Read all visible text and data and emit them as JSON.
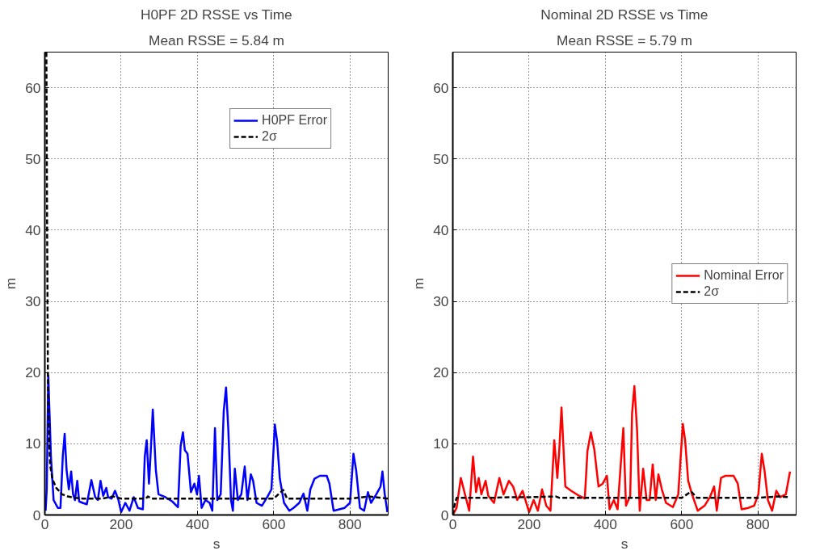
{
  "chart_data": [
    {
      "type": "line",
      "title": "H0PF 2D RSSE vs Time",
      "subtitle": "Mean RSSE = 5.84 m",
      "xlabel": "s",
      "ylabel": "m",
      "xlim": [
        0,
        900
      ],
      "ylim": [
        0,
        65
      ],
      "xticks": [
        0,
        200,
        400,
        600,
        800
      ],
      "yticks": [
        0,
        10,
        20,
        30,
        40,
        50,
        60
      ],
      "grid": true,
      "legend": "top right",
      "series": [
        {
          "name": "H0PF Error",
          "color": "#0000ff",
          "line_style": "solid",
          "x": [
            2,
            5,
            9,
            16,
            23,
            34,
            41,
            47,
            52,
            57,
            63,
            69,
            74,
            79,
            85,
            90,
            99,
            110,
            122,
            132,
            139,
            146,
            153,
            161,
            166,
            175,
            184,
            193,
            200,
            211,
            222,
            233,
            244,
            257,
            262,
            267,
            273,
            278,
            283,
            291,
            298,
            316,
            334,
            349,
            356,
            362,
            367,
            374,
            383,
            392,
            399,
            404,
            411,
            421,
            432,
            439,
            446,
            452,
            461,
            469,
            475,
            481,
            488,
            493,
            498,
            506,
            515,
            524,
            531,
            540,
            546,
            555,
            569,
            583,
            594,
            603,
            609,
            616,
            627,
            641,
            652,
            667,
            678,
            688,
            696,
            707,
            721,
            739,
            746,
            757,
            772,
            786,
            800,
            809,
            816,
            826,
            837,
            847,
            855,
            869,
            880,
            885,
            891,
            898
          ],
          "values": [
            0.6,
            3.6,
            19.6,
            8.2,
            2.1,
            1,
            1,
            8.2,
            11.4,
            6.3,
            3.6,
            6.1,
            2.9,
            2.1,
            4.8,
            1.9,
            1.7,
            1.5,
            4.9,
            2.5,
            2.1,
            4.8,
            2.7,
            3.8,
            2.5,
            2.3,
            3.4,
            2.1,
            0.4,
            1.7,
            0.6,
            2.5,
            1,
            0.8,
            8.2,
            10.5,
            4.4,
            9.3,
            14.8,
            6.3,
            2.9,
            2.5,
            1.9,
            1.1,
            9.7,
            11.6,
            9.1,
            8.6,
            3.2,
            4.4,
            2.9,
            5.5,
            1,
            2.1,
            1.7,
            0.6,
            12.2,
            2.1,
            2.9,
            14.6,
            17.9,
            12,
            2.1,
            0.6,
            6.5,
            2.1,
            2.9,
            6.8,
            2.1,
            5.7,
            4.8,
            1.7,
            1.3,
            2.5,
            3.6,
            12.7,
            10.3,
            5.1,
            1.7,
            0.6,
            1,
            1.7,
            3,
            0.6,
            3.6,
            5.1,
            5.5,
            5.5,
            4.4,
            0.6,
            0.8,
            1,
            1.7,
            8.6,
            6.3,
            1,
            0.6,
            3.2,
            1.7,
            2.9,
            4,
            6.1,
            2.9,
            0.4
          ]
        },
        {
          "name": "2σ",
          "color": "#000000",
          "line_style": "dashed",
          "x": [
            4,
            6,
            8,
            10,
            14,
            20,
            30,
            45,
            60,
            80,
            100,
            150,
            180,
            200,
            265,
            270,
            280,
            600,
            610,
            625,
            635,
            800,
            850,
            900
          ],
          "values": [
            65,
            40,
            20,
            12,
            7,
            5,
            3.8,
            2.9,
            2.6,
            2.4,
            2.3,
            2.3,
            2.6,
            2.3,
            2.3,
            2.6,
            2.3,
            2.3,
            2.8,
            3.5,
            2.3,
            2.3,
            2.6,
            2.3
          ]
        }
      ]
    },
    {
      "type": "line",
      "title": "Nominal 2D RSSE vs Time",
      "subtitle": "Mean RSSE = 5.79 m",
      "xlabel": "s",
      "ylabel": "m",
      "xlim": [
        0,
        900
      ],
      "ylim": [
        0,
        65
      ],
      "xticks": [
        0,
        200,
        400,
        600,
        800
      ],
      "yticks": [
        0,
        10,
        20,
        30,
        40,
        50,
        60
      ],
      "grid": true,
      "legend": "right",
      "series": [
        {
          "name": "Nominal Error",
          "color": "#ff0000",
          "line_style": "solid",
          "x": [
            0,
            10,
            21,
            32,
            43,
            53,
            61,
            68,
            75,
            86,
            93,
            108,
            122,
            133,
            147,
            158,
            169,
            183,
            200,
            212,
            223,
            234,
            245,
            256,
            266,
            274,
            279,
            285,
            295,
            310,
            331,
            346,
            353,
            362,
            371,
            382,
            393,
            404,
            411,
            422,
            432,
            447,
            454,
            465,
            470,
            476,
            483,
            490,
            499,
            508,
            516,
            524,
            532,
            539,
            548,
            559,
            577,
            591,
            603,
            609,
            617,
            627,
            642,
            660,
            674,
            685,
            692,
            703,
            714,
            736,
            747,
            757,
            775,
            790,
            801,
            810,
            817,
            826,
            837,
            848,
            858,
            873,
            884
          ],
          "values": [
            0,
            1,
            5.2,
            2.9,
            0.6,
            8.2,
            3.2,
            5.2,
            2.9,
            4.8,
            2.7,
            1.7,
            5.2,
            2.9,
            4.8,
            4,
            2.1,
            3.4,
            0.4,
            2.1,
            0.6,
            3.6,
            1.3,
            0.6,
            10.5,
            5.2,
            9,
            15.1,
            4,
            3.4,
            2.7,
            2.3,
            9,
            11.6,
            9.2,
            4,
            4.4,
            5.5,
            0.8,
            2.1,
            0.8,
            12.2,
            1.3,
            2.7,
            14.3,
            18.1,
            12,
            0.6,
            6.5,
            2.1,
            2.1,
            7.1,
            2.1,
            5.7,
            3.6,
            1.7,
            1.1,
            2.9,
            12.8,
            10.5,
            4.8,
            2.9,
            0.6,
            1.3,
            2.5,
            4,
            0.6,
            5.2,
            5.5,
            5.5,
            4.4,
            0.8,
            1,
            1.3,
            2.9,
            8.6,
            6.3,
            2.1,
            0.6,
            3.4,
            2.5,
            2.9,
            6.1
          ]
        },
        {
          "name": "2σ",
          "color": "#000000",
          "line_style": "dashed",
          "x": [
            0,
            5,
            10,
            100,
            150,
            200,
            270,
            280,
            600,
            625,
            640,
            800,
            850,
            884
          ],
          "values": [
            0,
            1.5,
            2.4,
            2.4,
            2.5,
            2.5,
            2.6,
            2.4,
            2.4,
            3.3,
            2.4,
            2.4,
            2.6,
            2.5
          ]
        }
      ]
    }
  ]
}
